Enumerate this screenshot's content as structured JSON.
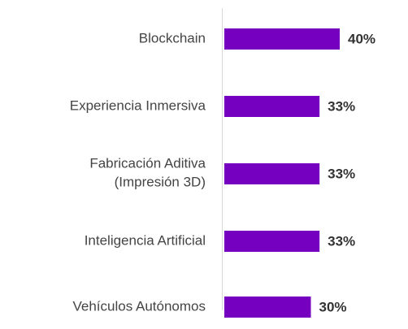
{
  "chart_data": {
    "type": "bar",
    "orientation": "horizontal",
    "categories": [
      "Blockchain",
      "Experiencia Inmersiva",
      "Fabricación Aditiva\n(Impresión 3D)",
      "Inteligencia Artificial",
      "Vehículos Autónomos"
    ],
    "values": [
      40,
      33,
      33,
      33,
      30
    ],
    "value_labels": [
      "40%",
      "33%",
      "33%",
      "33%",
      "30%"
    ],
    "color": "#7500c0"
  }
}
